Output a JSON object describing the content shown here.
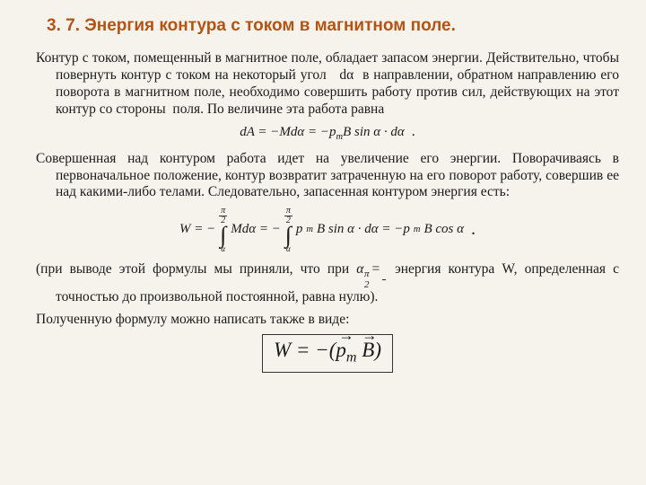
{
  "title": "3. 7. Энергия контура с током в магнитном поле.",
  "para1": "Контур с током, помещенный в магнитное поле, обладает запасом энергии. Действительно, чтобы повернуть контур с током на некоторый угол   dα  в направлении, обратном направлению его поворота в магнитном поле, необходимо совершить работу против сил, действующих на этот контур со стороны  поля. По величине эта работа равна",
  "formula1_text": "dA = −Mdα = −p",
  "formula1_sub": "m",
  "formula1_tail": "B sin α · dα",
  "para2": "Совершенная над контуром работа идет на увеличение его энергии. Поворачиваясь в первоначальное положение, контур возвратит затраченную на его поворот работу, совершив ее над какими-либо телами. Следовательно, запасенная контуром энергия есть:",
  "integral": {
    "lhs": "W = −",
    "upper_plain": "",
    "lower": "α",
    "mid1": "Mdα = −",
    "mid2_a": "p",
    "mid2_sub": "m",
    "mid2_b": "B sin α · dα = −p",
    "rhs_sub": "m",
    "rhs": "B cos α"
  },
  "para3_a": "(при выводе этой формулы мы приняли, что при ",
  "para3_alpha": "α =",
  "para3_b": " энергия контура W, определенная с точностью до произвольной постоянной, равна нулю).",
  "para4": "Полученную формулу можно написать также в виде:",
  "boxed": {
    "lhs": "W = −(",
    "pm": "p",
    "pm_sub": "m",
    "B": "B",
    "rhs": ")"
  },
  "colors": {
    "heading": "#b35414",
    "text": "#1a1a1a",
    "bg": "#f5f3ec"
  }
}
